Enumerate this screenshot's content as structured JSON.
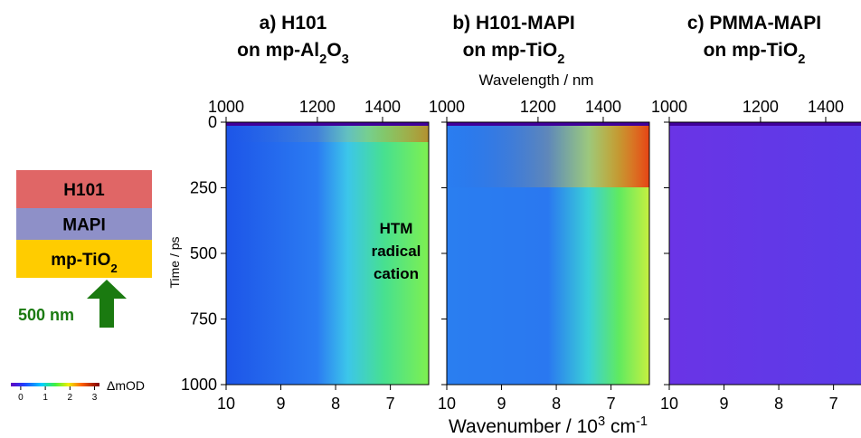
{
  "diagram": {
    "layers": [
      {
        "segments": [
          {
            "text": "H101"
          }
        ],
        "color": "#e06666"
      },
      {
        "segments": [
          {
            "text": "MAPI"
          }
        ],
        "color": "#8e90c8"
      },
      {
        "segments": [
          {
            "text": "mp-TiO"
          },
          {
            "text": "2",
            "sub": true
          }
        ],
        "color": "#ffcc00"
      }
    ],
    "excitation": "500 nm",
    "excitation_color": "#1a7a10"
  },
  "colorbar": {
    "label": "ΔmOD",
    "ticks": [
      0,
      1,
      2,
      3
    ],
    "lim": [
      -0.4,
      3.2
    ]
  },
  "y_axis": {
    "label": "Time / ps",
    "lim": [
      0,
      1000
    ],
    "ticks": [
      0,
      250,
      500,
      750,
      1000
    ]
  },
  "x_axis": {
    "label": [
      {
        "text": "Wavenumber / 10"
      },
      {
        "text": "3",
        "sup": true
      },
      {
        "text": " cm"
      },
      {
        "text": "-1",
        "sup": true
      }
    ],
    "lim": [
      10,
      6.3
    ],
    "ticks": [
      10,
      9,
      8,
      7
    ]
  },
  "top_axis": {
    "label": "Wavelength / nm",
    "ticks": [
      1000,
      1200,
      1400
    ]
  },
  "panels": [
    {
      "title": [
        [
          {
            "text": "a) H101"
          }
        ],
        [
          {
            "text": "on mp-Al"
          },
          {
            "text": "2",
            "sub": true
          },
          {
            "text": "O"
          },
          {
            "text": "3",
            "sub": true
          }
        ]
      ],
      "annotation": [
        "HTM",
        "radical",
        "cation"
      ]
    },
    {
      "title": [
        [
          {
            "text": "b) H101-MAPI"
          }
        ],
        [
          {
            "text": "on mp-TiO"
          },
          {
            "text": "2",
            "sub": true
          }
        ]
      ]
    },
    {
      "title": [
        [
          {
            "text": "c) PMMA-MAPI"
          }
        ],
        [
          {
            "text": "on mp-TiO"
          },
          {
            "text": "2",
            "sub": true
          }
        ]
      ]
    }
  ]
}
